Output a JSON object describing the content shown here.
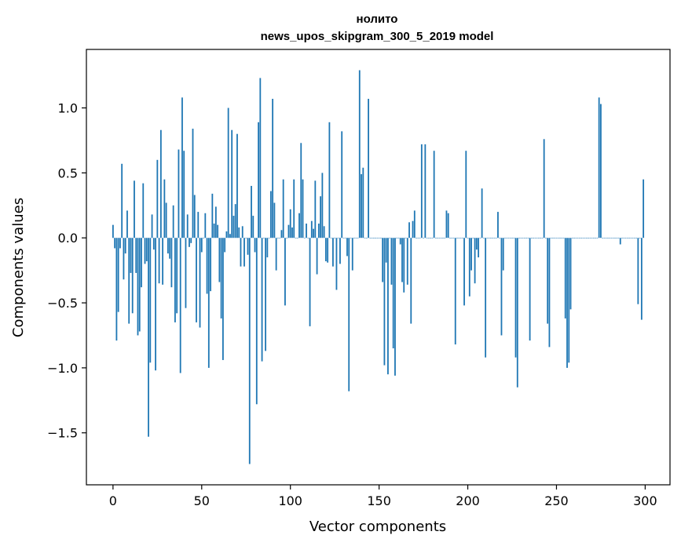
{
  "chart_data": {
    "type": "bar",
    "title": "нолито",
    "subtitle": "news_upos_skipgram_300_5_2019 model",
    "xlabel": "Vector components",
    "ylabel": "Components values",
    "xlim": [
      -15,
      314
    ],
    "ylim": [
      -1.9,
      1.45
    ],
    "xticks": [
      0,
      50,
      100,
      150,
      200,
      250,
      300
    ],
    "xtick_labels": [
      "0",
      "50",
      "100",
      "150",
      "200",
      "250",
      "300"
    ],
    "yticks": [
      -1.5,
      -1.0,
      -0.5,
      0.0,
      0.5,
      1.0
    ],
    "ytick_labels": [
      "−1.5",
      "−1.0",
      "−0.5",
      "0.0",
      "0.5",
      "1.0"
    ],
    "bar_color": "#1f77b4",
    "values": [
      0.1,
      -0.08,
      -0.79,
      -0.57,
      -0.08,
      0.57,
      -0.32,
      -0.12,
      0.21,
      -0.66,
      -0.27,
      -0.58,
      0.44,
      -0.27,
      -0.75,
      -0.72,
      -0.38,
      0.42,
      -0.2,
      -0.18,
      -1.53,
      -0.96,
      0.18,
      -0.09,
      -1.02,
      0.6,
      -0.35,
      0.83,
      -0.36,
      0.45,
      0.27,
      -0.12,
      -0.16,
      -0.38,
      0.25,
      -0.65,
      -0.58,
      0.68,
      -1.04,
      1.08,
      0.67,
      -0.54,
      0.18,
      -0.07,
      -0.04,
      0.84,
      0.33,
      -0.65,
      0.2,
      -0.69,
      -0.11,
      0.0,
      0.19,
      -0.43,
      -1.0,
      -0.41,
      0.34,
      0.11,
      0.24,
      0.1,
      -0.34,
      -0.62,
      -0.94,
      -0.11,
      0.05,
      1.0,
      0.03,
      0.83,
      0.17,
      0.26,
      0.8,
      0.08,
      -0.22,
      0.09,
      -0.22,
      0.0,
      -0.13,
      -1.74,
      0.4,
      0.17,
      -0.11,
      -1.28,
      0.89,
      1.23,
      -0.95,
      0.0,
      -0.87,
      -0.15,
      0.0,
      0.36,
      1.07,
      0.27,
      -0.25,
      0.0,
      0.0,
      0.06,
      0.45,
      -0.52,
      0.0,
      0.1,
      0.22,
      0.08,
      0.45,
      0.0,
      0.0,
      0.19,
      0.73,
      0.45,
      0.0,
      0.11,
      0.0,
      -0.68,
      0.13,
      0.07,
      0.44,
      -0.28,
      0.11,
      0.32,
      0.5,
      0.09,
      -0.18,
      -0.19,
      0.89,
      0.0,
      -0.22,
      0.0,
      -0.4,
      0.0,
      -0.2,
      0.82,
      0.0,
      0.0,
      -0.14,
      -1.18,
      0.0,
      -0.25,
      0.0,
      0.0,
      0.0,
      1.29,
      0.49,
      0.54,
      0.0,
      0.0,
      1.07,
      0.0,
      0.0,
      0.0,
      0.0,
      0.0,
      0.0,
      0.0,
      -0.34,
      -0.98,
      -0.19,
      -1.05,
      0.0,
      -0.36,
      -0.85,
      -1.06,
      0.0,
      0.0,
      -0.05,
      -0.34,
      -0.42,
      0.0,
      -0.36,
      0.12,
      -0.66,
      0.13,
      0.21,
      0.0,
      0.0,
      0.0,
      0.72,
      0.0,
      0.72,
      0.0,
      0.0,
      0.0,
      0.0,
      0.67,
      0.0,
      0.0,
      0.0,
      0.0,
      0.0,
      0.0,
      0.21,
      0.19,
      0.0,
      0.0,
      0.0,
      -0.82,
      0.0,
      0.0,
      0.0,
      0.0,
      -0.52,
      0.67,
      0.0,
      -0.45,
      -0.25,
      0.0,
      -0.35,
      -0.09,
      -0.15,
      0.0,
      0.38,
      0.0,
      -0.92,
      0.0,
      0.0,
      0.0,
      0.0,
      0.0,
      0.0,
      0.2,
      0.0,
      -0.75,
      -0.25,
      0.0,
      0.0,
      0.0,
      0.0,
      0.0,
      0.0,
      -0.92,
      -1.15,
      0.0,
      0.0,
      0.0,
      0.0,
      0.0,
      0.0,
      -0.79,
      0.0,
      0.0,
      0.0,
      0.0,
      0.0,
      0.0,
      0.0,
      0.76,
      0.0,
      -0.66,
      -0.84,
      0.0,
      0.0,
      0.0,
      0.0,
      0.0,
      0.0,
      0.0,
      0.0,
      -0.62,
      -1.0,
      -0.96,
      -0.55,
      0.0,
      0.0,
      0.0,
      0.0,
      0.0,
      0.0,
      0.0,
      0.0,
      0.0,
      0.0,
      0.0,
      0.0,
      0.0,
      0.0,
      0.0,
      1.08,
      1.03,
      0.0,
      0.0,
      0.0,
      0.0,
      0.0,
      0.0,
      0.0,
      0.0,
      0.0,
      0.0,
      -0.05,
      0.0,
      0.0,
      0.0,
      0.0,
      0.0,
      0.0,
      0.0,
      0.0,
      0.0,
      -0.51,
      0.0,
      -0.63,
      0.45
    ]
  }
}
